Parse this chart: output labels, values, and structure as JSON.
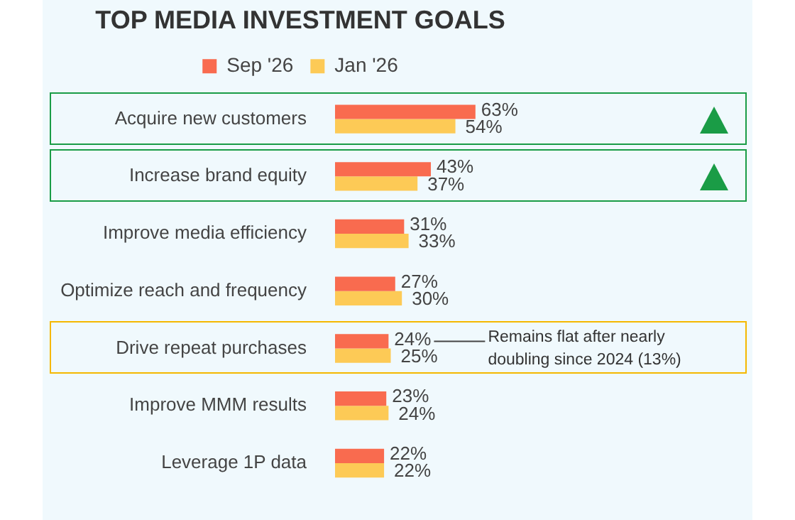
{
  "chart_data": {
    "type": "bar",
    "orientation": "horizontal",
    "title": "TOP MEDIA INVESTMENT GOALS",
    "categories": [
      "Acquire new customers",
      "Increase brand equity",
      "Improve media efficiency",
      "Optimize reach and frequency",
      "Drive repeat purchases",
      "Improve MMM results",
      "Leverage 1P data"
    ],
    "series": [
      {
        "name": "Sep '26",
        "color": "#f96b4f",
        "values": [
          63,
          43,
          31,
          27,
          24,
          23,
          22
        ],
        "value_labels": [
          "63%",
          "43%",
          "31%",
          "27%",
          "24%",
          "23%",
          "22%"
        ]
      },
      {
        "name": "Jan '26",
        "color": "#fdca56",
        "values": [
          54,
          37,
          33,
          30,
          25,
          24,
          22
        ],
        "value_labels": [
          "54%",
          "37%",
          "33%",
          "30%",
          "25%",
          "24%",
          "22%"
        ]
      }
    ],
    "tick_labels": false,
    "legend": "top",
    "annotations": [
      "Remains flat after nearly doubling since 2024 (13%)"
    ]
  }
}
